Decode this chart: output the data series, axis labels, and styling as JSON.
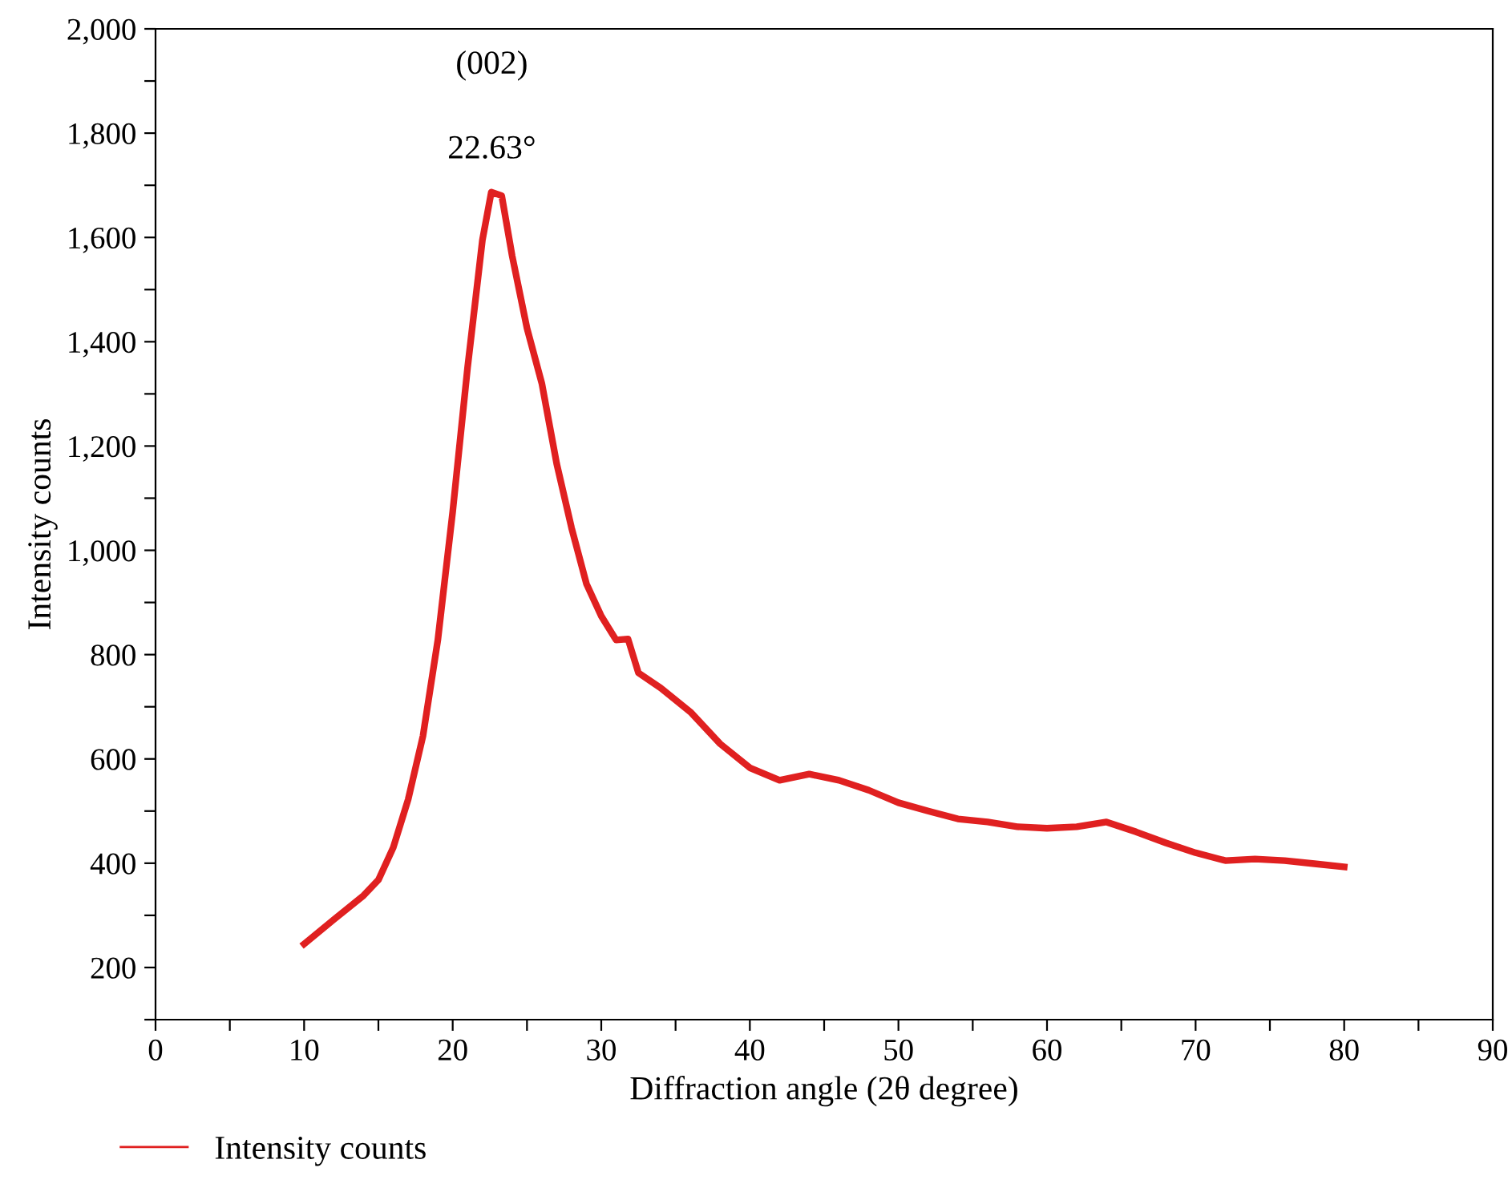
{
  "chart_data": {
    "type": "line",
    "xlabel": "Diffraction angle (2θ degree)",
    "ylabel": "Intensity counts",
    "annotations": [
      "(002)",
      {
        "text": "22.63°",
        "x": 22.63,
        "y": 1687
      }
    ],
    "xlim": [
      0,
      90
    ],
    "ylim": [
      100,
      2000
    ],
    "xticks": [
      0,
      {
        "value": 5,
        "label": null
      },
      10,
      {
        "value": 15,
        "label": null
      },
      20,
      {
        "value": 25,
        "label": null
      },
      30,
      {
        "value": 35,
        "label": null
      },
      40,
      {
        "value": 45,
        "label": null
      },
      50,
      {
        "value": 55,
        "label": null
      },
      60,
      {
        "value": 65,
        "label": null
      },
      70,
      {
        "value": 75,
        "label": null
      },
      80,
      {
        "value": 85,
        "label": null
      },
      90
    ],
    "yticks": [
      {
        "value": 100,
        "label": null
      },
      {
        "value": 200,
        "label": "200"
      },
      {
        "value": 300,
        "label": null
      },
      {
        "value": 400,
        "label": "400"
      },
      {
        "value": 500,
        "label": null
      },
      {
        "value": 600,
        "label": "600"
      },
      {
        "value": 700,
        "label": null
      },
      {
        "value": 800,
        "label": "800"
      },
      {
        "value": 900,
        "label": null
      },
      {
        "value": 1000,
        "label": "1,000"
      },
      {
        "value": 1100,
        "label": null
      },
      {
        "value": 1200,
        "label": "1,200"
      },
      {
        "value": 1300,
        "label": null
      },
      {
        "value": 1400,
        "label": "1,400"
      },
      {
        "value": 1500,
        "label": null
      },
      {
        "value": 1600,
        "label": "1,600"
      },
      {
        "value": 1700,
        "label": null
      },
      {
        "value": 1800,
        "label": "1,800"
      },
      {
        "value": 1900,
        "label": null
      },
      {
        "value": 2000,
        "label": "2,000"
      }
    ],
    "grid": false,
    "legend": "bottom left",
    "marker": "none",
    "line_style": "solid",
    "series": [
      {
        "name": "Intensity counts",
        "color": "#e02020",
        "x": [
          10,
          12,
          14,
          15,
          16,
          17,
          18,
          19,
          20,
          21,
          21.5,
          22,
          22.6,
          23.3,
          24,
          25,
          26,
          27,
          28,
          29,
          30,
          31,
          31.8,
          32.5,
          34,
          36,
          38,
          40,
          42,
          44,
          46,
          48,
          50,
          52,
          54,
          56,
          58,
          60,
          62,
          64,
          66,
          68,
          70,
          72,
          74,
          76,
          78,
          80
        ],
        "values": [
          245,
          292,
          338,
          368,
          430,
          522,
          644,
          828,
          1074,
          1350,
          1472,
          1595,
          1687,
          1680,
          1565,
          1426,
          1320,
          1166,
          1043,
          936,
          874,
          828,
          830,
          765,
          736,
          690,
          629,
          583,
          559,
          571,
          559,
          540,
          516,
          500,
          485,
          479,
          470,
          467,
          470,
          479,
          460,
          439,
          420,
          405,
          408,
          405,
          399,
          393
        ]
      }
    ]
  }
}
